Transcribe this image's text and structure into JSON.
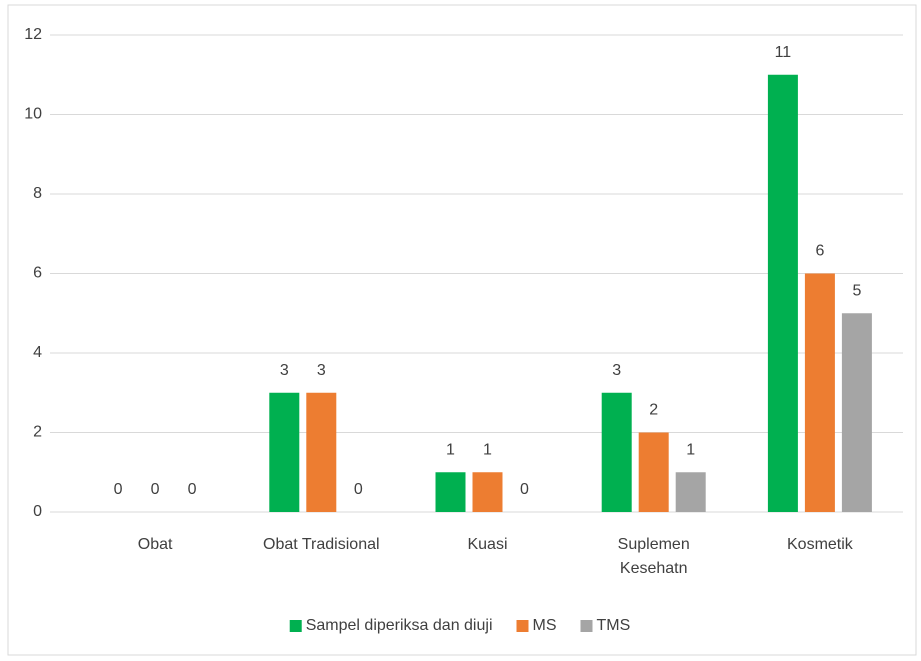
{
  "chart_data": {
    "type": "bar",
    "categories": [
      "Obat",
      "Obat Tradisional",
      "Kuasi",
      "Suplemen Kesehatn",
      "Kosmetik"
    ],
    "series": [
      {
        "name": "Sampel diperiksa dan diuji",
        "color": "#00b050",
        "values": [
          0,
          3,
          1,
          3,
          11
        ]
      },
      {
        "name": "MS",
        "color": "#ed7d31",
        "values": [
          0,
          3,
          1,
          2,
          6
        ]
      },
      {
        "name": "TMS",
        "color": "#a5a5a5",
        "values": [
          0,
          0,
          0,
          1,
          5
        ]
      }
    ],
    "ylim": [
      0,
      12
    ],
    "yticks": [
      0,
      2,
      4,
      6,
      8,
      10,
      12
    ],
    "grid": true,
    "legend": "bottom"
  }
}
